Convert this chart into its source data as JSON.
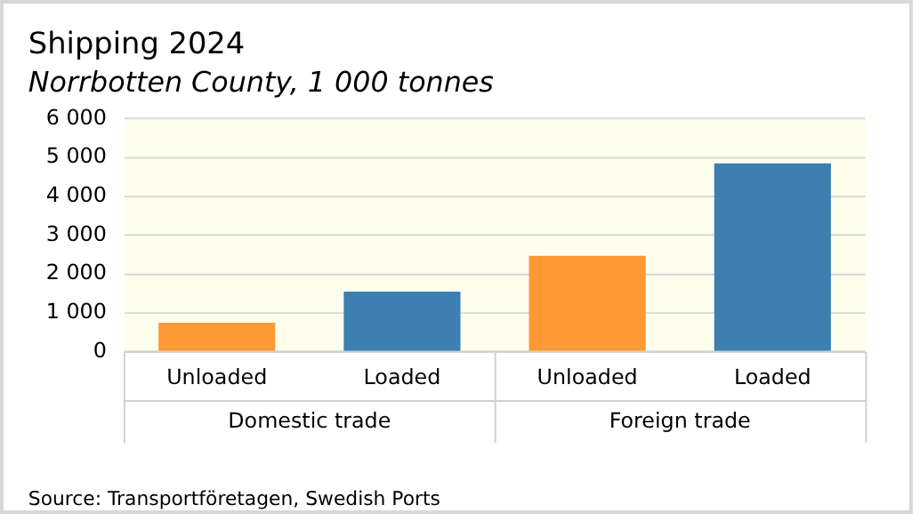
{
  "chart_data": {
    "type": "bar",
    "title": "Shipping 2024",
    "subtitle": "Norrbotten County, 1 000 tonnes",
    "categories": [
      "Unloaded",
      "Loaded",
      "Unloaded",
      "Loaded"
    ],
    "values": [
      750,
      1550,
      2470,
      4850
    ],
    "colors": [
      "#ff9933",
      "#3c7fb0",
      "#ff9933",
      "#3c7fb0"
    ],
    "ylim": [
      0,
      6000
    ],
    "yticks": [
      0,
      {
        "value": 1000,
        "label": "1 000"
      },
      {
        "value": 2000,
        "label": "2 000"
      },
      {
        "value": 3000,
        "label": "3 000"
      },
      {
        "value": 4000,
        "label": "4 000"
      },
      {
        "value": 5000,
        "label": "5 000"
      },
      {
        "value": 6000,
        "label": "6 000"
      }
    ],
    "grid": "y",
    "legend": false,
    "annotations": [
      "Domestic trade",
      "Foreign trade",
      "Source: Transportföretagen, Swedish Ports"
    ]
  }
}
